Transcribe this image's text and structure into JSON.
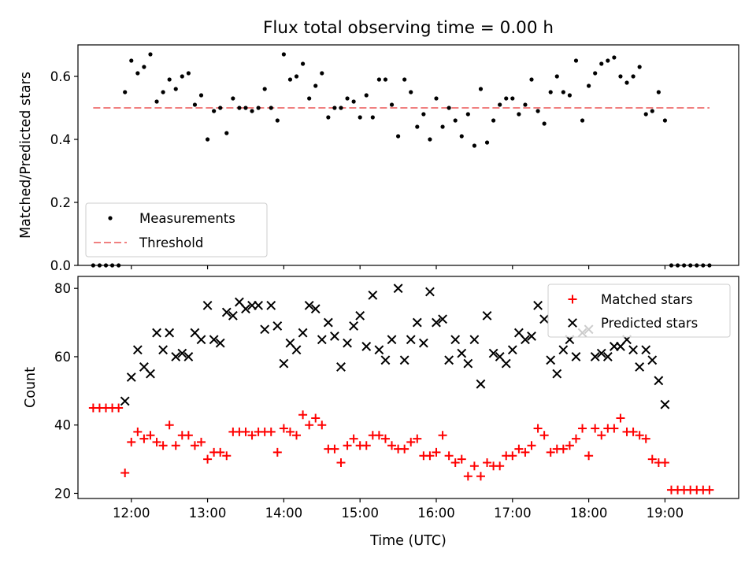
{
  "figure": {
    "title": "Flux total observing time = 0.00 h"
  },
  "chart_data": [
    {
      "type": "scatter",
      "title": "Flux total observing time = 0.00 h",
      "xlabel": "",
      "ylabel": "Matched/Predicted stars",
      "xlim": [
        "11:18",
        "19:58"
      ],
      "ylim": [
        0,
        0.7
      ],
      "yticks": [
        0.0,
        0.2,
        0.4,
        0.6
      ],
      "ytick_labels": [
        "0.0",
        "0.2",
        "0.4",
        "0.6"
      ],
      "legend": {
        "placement": "lower-left",
        "entries": [
          "Measurements",
          "Threshold"
        ]
      },
      "series": [
        {
          "name": "Measurements",
          "marker": "dot",
          "color": "#000000",
          "x": [
            "11:30",
            "11:35",
            "11:40",
            "11:45",
            "11:50",
            "11:55",
            "12:00",
            "12:05",
            "12:10",
            "12:15",
            "12:20",
            "12:25",
            "12:30",
            "12:35",
            "12:40",
            "12:45",
            "12:50",
            "12:55",
            "13:00",
            "13:05",
            "13:10",
            "13:15",
            "13:20",
            "13:25",
            "13:30",
            "13:35",
            "13:40",
            "13:45",
            "13:50",
            "13:55",
            "14:00",
            "14:05",
            "14:10",
            "14:15",
            "14:20",
            "14:25",
            "14:30",
            "14:35",
            "14:40",
            "14:45",
            "14:50",
            "14:55",
            "15:00",
            "15:05",
            "15:10",
            "15:15",
            "15:20",
            "15:25",
            "15:30",
            "15:35",
            "15:40",
            "15:45",
            "15:50",
            "15:55",
            "16:00",
            "16:05",
            "16:10",
            "16:15",
            "16:20",
            "16:25",
            "16:30",
            "16:35",
            "16:40",
            "16:45",
            "16:50",
            "16:55",
            "17:00",
            "17:05",
            "17:10",
            "17:15",
            "17:20",
            "17:25",
            "17:30",
            "17:35",
            "17:40",
            "17:45",
            "17:50",
            "17:55",
            "18:00",
            "18:05",
            "18:10",
            "18:15",
            "18:20",
            "18:25",
            "18:30",
            "18:35",
            "18:40",
            "18:45",
            "18:50",
            "18:55",
            "19:00",
            "19:05",
            "19:10",
            "19:15",
            "19:20",
            "19:25",
            "19:30",
            "19:35"
          ],
          "y": [
            0,
            0,
            0,
            0,
            0,
            0.55,
            0.65,
            0.61,
            0.63,
            0.67,
            0.52,
            0.55,
            0.59,
            0.56,
            0.6,
            0.61,
            0.51,
            0.54,
            0.4,
            0.49,
            0.5,
            0.42,
            0.53,
            0.5,
            0.5,
            0.49,
            0.5,
            0.56,
            0.5,
            0.46,
            0.67,
            0.59,
            0.6,
            0.64,
            0.53,
            0.57,
            0.61,
            0.47,
            0.5,
            0.5,
            0.53,
            0.52,
            0.47,
            0.54,
            0.47,
            0.59,
            0.59,
            0.51,
            0.41,
            0.59,
            0.55,
            0.44,
            0.48,
            0.4,
            0.53,
            0.44,
            0.5,
            0.46,
            0.41,
            0.48,
            0.38,
            0.56,
            0.39,
            0.46,
            0.51,
            0.53,
            0.53,
            0.48,
            0.51,
            0.59,
            0.49,
            0.45,
            0.55,
            0.6,
            0.55,
            0.54,
            0.65,
            0.46,
            0.57,
            0.61,
            0.64,
            0.65,
            0.66,
            0.6,
            0.58,
            0.6,
            0.63,
            0.48,
            0.49,
            0.55,
            0.46,
            0,
            0,
            0,
            0,
            0,
            0,
            0
          ]
        },
        {
          "name": "Threshold",
          "marker": "dashed-line",
          "color": "#f08080",
          "x": [
            "11:30",
            "19:35"
          ],
          "y": [
            0.5,
            0.5
          ]
        }
      ]
    },
    {
      "type": "scatter",
      "title": "",
      "xlabel": "Time (UTC)",
      "ylabel": "Count",
      "xlim": [
        "11:18",
        "19:58"
      ],
      "ylim": [
        18.5,
        83.5
      ],
      "yticks": [
        20,
        40,
        60,
        80
      ],
      "ytick_labels": [
        "20",
        "40",
        "60",
        "80"
      ],
      "xticks": [
        "12:00",
        "13:00",
        "14:00",
        "15:00",
        "16:00",
        "17:00",
        "18:00",
        "19:00"
      ],
      "xtick_labels": [
        "12:00",
        "13:00",
        "14:00",
        "15:00",
        "16:00",
        "17:00",
        "18:00",
        "19:00"
      ],
      "legend": {
        "placement": "top-right",
        "entries": [
          "Matched stars",
          "Predicted stars"
        ]
      },
      "series": [
        {
          "name": "Matched stars",
          "marker": "plus",
          "color": "#ff0000",
          "x": [
            "11:30",
            "11:35",
            "11:40",
            "11:45",
            "11:50",
            "11:55",
            "12:00",
            "12:05",
            "12:10",
            "12:15",
            "12:20",
            "12:25",
            "12:30",
            "12:35",
            "12:40",
            "12:45",
            "12:50",
            "12:55",
            "13:00",
            "13:05",
            "13:10",
            "13:15",
            "13:20",
            "13:25",
            "13:30",
            "13:35",
            "13:40",
            "13:45",
            "13:50",
            "13:55",
            "14:00",
            "14:05",
            "14:10",
            "14:15",
            "14:20",
            "14:25",
            "14:30",
            "14:35",
            "14:40",
            "14:45",
            "14:50",
            "14:55",
            "15:00",
            "15:05",
            "15:10",
            "15:15",
            "15:20",
            "15:25",
            "15:30",
            "15:35",
            "15:40",
            "15:45",
            "15:50",
            "15:55",
            "16:00",
            "16:05",
            "16:10",
            "16:15",
            "16:20",
            "16:25",
            "16:30",
            "16:35",
            "16:40",
            "16:45",
            "16:50",
            "16:55",
            "17:00",
            "17:05",
            "17:10",
            "17:15",
            "17:20",
            "17:25",
            "17:30",
            "17:35",
            "17:40",
            "17:45",
            "17:50",
            "17:55",
            "18:00",
            "18:05",
            "18:10",
            "18:15",
            "18:20",
            "18:25",
            "18:30",
            "18:35",
            "18:40",
            "18:45",
            "18:50",
            "18:55",
            "19:00",
            "19:05",
            "19:10",
            "19:15",
            "19:20",
            "19:25",
            "19:30",
            "19:35"
          ],
          "y": [
            45,
            45,
            45,
            45,
            45,
            26,
            35,
            38,
            36,
            37,
            35,
            34,
            40,
            34,
            37,
            37,
            34,
            35,
            30,
            32,
            32,
            31,
            38,
            38,
            38,
            37,
            38,
            38,
            38,
            32,
            39,
            38,
            37,
            43,
            40,
            42,
            40,
            33,
            33,
            29,
            34,
            36,
            34,
            34,
            37,
            37,
            36,
            34,
            33,
            33,
            35,
            36,
            31,
            31,
            32,
            37,
            31,
            29,
            30,
            25,
            28,
            25,
            29,
            28,
            28,
            31,
            31,
            33,
            32,
            34,
            39,
            37,
            32,
            33,
            33,
            34,
            36,
            39,
            31,
            39,
            37,
            39,
            39,
            42,
            38,
            38,
            37,
            36,
            30,
            29,
            29,
            21,
            21,
            21,
            21,
            21,
            21,
            21
          ]
        },
        {
          "name": "Predicted stars",
          "marker": "x",
          "color": "#000000",
          "x": [
            "11:55",
            "12:00",
            "12:05",
            "12:10",
            "12:15",
            "12:20",
            "12:25",
            "12:30",
            "12:35",
            "12:40",
            "12:45",
            "12:50",
            "12:55",
            "13:00",
            "13:05",
            "13:10",
            "13:15",
            "13:20",
            "13:25",
            "13:30",
            "13:35",
            "13:40",
            "13:45",
            "13:50",
            "13:55",
            "14:00",
            "14:05",
            "14:10",
            "14:15",
            "14:20",
            "14:25",
            "14:30",
            "14:35",
            "14:40",
            "14:45",
            "14:50",
            "14:55",
            "15:00",
            "15:05",
            "15:10",
            "15:15",
            "15:20",
            "15:25",
            "15:30",
            "15:35",
            "15:40",
            "15:45",
            "15:50",
            "15:55",
            "16:00",
            "16:05",
            "16:10",
            "16:15",
            "16:20",
            "16:25",
            "16:30",
            "16:35",
            "16:40",
            "16:45",
            "16:50",
            "16:55",
            "17:00",
            "17:05",
            "17:10",
            "17:15",
            "17:20",
            "17:25",
            "17:30",
            "17:35",
            "17:40",
            "17:45",
            "17:50",
            "17:55",
            "18:00",
            "18:05",
            "18:10",
            "18:15",
            "18:20",
            "18:25",
            "18:30",
            "18:35",
            "18:40",
            "18:45",
            "18:50",
            "18:55",
            "19:00"
          ],
          "y": [
            47,
            54,
            62,
            57,
            55,
            67,
            62,
            67,
            60,
            61,
            60,
            67,
            65,
            75,
            65,
            64,
            73,
            72,
            76,
            74,
            75,
            75,
            68,
            75,
            69,
            58,
            64,
            62,
            67,
            75,
            74,
            65,
            70,
            66,
            57,
            64,
            69,
            72,
            63,
            78,
            62,
            59,
            65,
            80,
            59,
            65,
            70,
            64,
            79,
            70,
            71,
            59,
            65,
            61,
            58,
            65,
            52,
            72,
            61,
            60,
            58,
            62,
            67,
            65,
            66,
            75,
            71,
            59,
            55,
            62,
            65,
            60,
            67,
            68,
            60,
            61,
            60,
            63,
            63,
            65,
            62,
            57,
            62,
            59,
            53,
            46
          ]
        }
      ]
    }
  ]
}
